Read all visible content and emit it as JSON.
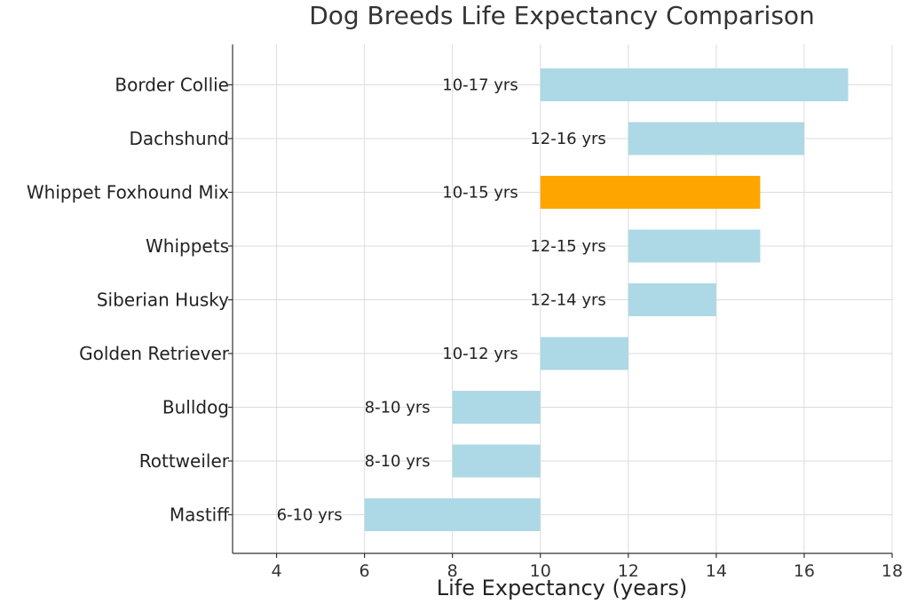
{
  "chart_data": {
    "type": "bar",
    "orientation": "horizontal-range",
    "title": "Dog Breeds Life Expectancy Comparison",
    "xlabel": "Life Expectancy (years)",
    "ylabel": "",
    "xlim": [
      3,
      18
    ],
    "xticks": [
      4,
      6,
      8,
      10,
      12,
      14,
      16,
      18
    ],
    "grid": true,
    "bar_color": "#add8e6",
    "highlight_color": "#ffa500",
    "categories": [
      "Border Collie",
      "Dachshund",
      "Whippet Foxhound Mix",
      "Whippets",
      "Siberian Husky",
      "Golden Retriever",
      "Bulldog",
      "Rottweiler",
      "Mastiff"
    ],
    "ranges": [
      {
        "start": 10,
        "end": 17,
        "label": "10-17 yrs",
        "highlight": false
      },
      {
        "start": 12,
        "end": 16,
        "label": "12-16 yrs",
        "highlight": false
      },
      {
        "start": 10,
        "end": 15,
        "label": "10-15 yrs",
        "highlight": true
      },
      {
        "start": 12,
        "end": 15,
        "label": "12-15 yrs",
        "highlight": false
      },
      {
        "start": 12,
        "end": 14,
        "label": "12-14 yrs",
        "highlight": false
      },
      {
        "start": 10,
        "end": 12,
        "label": "10-12 yrs",
        "highlight": false
      },
      {
        "start": 8,
        "end": 10,
        "label": "8-10 yrs",
        "highlight": false
      },
      {
        "start": 8,
        "end": 10,
        "label": "8-10 yrs",
        "highlight": false
      },
      {
        "start": 6,
        "end": 10,
        "label": "6-10 yrs",
        "highlight": false
      }
    ]
  }
}
